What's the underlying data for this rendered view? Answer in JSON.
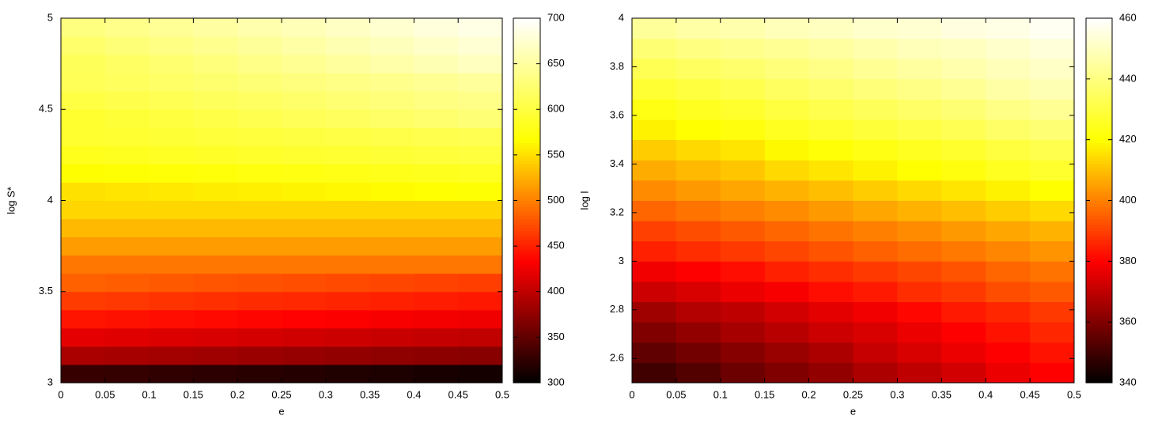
{
  "chart_data": [
    {
      "type": "heatmap",
      "xlabel": "e",
      "ylabel": "log S*",
      "colormap": "hot",
      "x": [
        0.025,
        0.075,
        0.125,
        0.175,
        0.225,
        0.275,
        0.325,
        0.375,
        0.425,
        0.475
      ],
      "y": [
        3.05,
        3.15,
        3.25,
        3.35,
        3.45,
        3.55,
        3.65,
        3.75,
        3.85,
        3.95,
        4.05,
        4.15,
        4.25,
        4.35,
        4.45,
        4.55,
        4.65,
        4.75,
        4.85,
        4.95
      ],
      "z": [
        [
          329,
          327,
          325,
          323,
          321,
          319,
          317,
          315,
          313,
          311
        ],
        [
          389,
          387,
          385,
          383,
          381,
          379,
          377,
          375,
          373,
          371
        ],
        [
          419,
          417,
          415,
          413,
          411,
          409,
          407,
          405,
          403,
          401
        ],
        [
          444,
          442,
          440,
          438,
          436,
          434,
          432,
          430,
          428,
          426
        ],
        [
          464,
          462,
          460,
          458,
          456,
          454,
          452,
          450,
          448,
          446
        ],
        [
          484,
          482,
          480,
          478,
          476,
          474,
          472,
          470,
          468,
          466
        ],
        [
          495,
          495,
          495,
          495,
          495,
          495,
          495,
          495,
          495,
          495
        ],
        [
          515,
          515,
          515,
          515,
          515,
          515,
          515,
          515,
          515,
          515
        ],
        [
          530,
          530,
          530,
          530,
          530,
          530,
          530,
          530,
          530,
          530
        ],
        [
          545,
          545,
          545,
          545,
          545,
          545,
          545,
          545,
          545,
          545
        ],
        [
          551,
          553,
          555,
          557,
          559,
          561,
          563,
          565,
          567,
          569
        ],
        [
          566,
          568,
          570,
          572,
          574,
          576,
          578,
          580,
          582,
          584
        ],
        [
          581,
          583,
          585,
          587,
          589,
          591,
          593,
          595,
          597,
          599
        ],
        [
          591,
          593,
          595,
          597,
          599,
          601,
          603,
          605,
          607,
          609
        ],
        [
          592,
          596,
          600,
          604,
          608,
          612,
          616,
          620,
          624,
          628
        ],
        [
          602,
          606,
          610,
          614,
          618,
          622,
          626,
          630,
          634,
          638
        ],
        [
          612,
          616,
          620,
          624,
          628,
          632,
          636,
          640,
          644,
          648
        ],
        [
          613,
          619,
          625,
          631,
          637,
          643,
          649,
          655,
          661,
          667
        ],
        [
          623,
          629,
          635,
          641,
          647,
          653,
          659,
          665,
          671,
          677
        ],
        [
          633,
          639,
          645,
          651,
          657,
          663,
          669,
          675,
          681,
          687
        ]
      ],
      "xlim": [
        0,
        0.5
      ],
      "xticks": [
        0,
        0.05,
        0.1,
        0.15,
        0.2,
        0.25,
        0.3,
        0.35,
        0.4,
        0.45,
        0.5
      ],
      "ylim": [
        3,
        5
      ],
      "yticks": [
        3,
        3.5,
        4,
        4.5,
        5
      ],
      "zlim": [
        300,
        700
      ],
      "zticks": [
        300,
        350,
        400,
        450,
        500,
        550,
        600,
        650,
        700
      ]
    },
    {
      "type": "heatmap",
      "xlabel": "e",
      "ylabel": "log l",
      "colormap": "hot",
      "x": [
        0.025,
        0.075,
        0.125,
        0.175,
        0.225,
        0.275,
        0.325,
        0.375,
        0.425,
        0.475
      ],
      "y": [
        2.542,
        2.625,
        2.708,
        2.792,
        2.875,
        2.958,
        3.042,
        3.125,
        3.208,
        3.292,
        3.375,
        3.458,
        3.542,
        3.625,
        3.708,
        3.792,
        3.875,
        3.958
      ],
      "z": [
        [
          350,
          353,
          357,
          360,
          363,
          367,
          370,
          373,
          377,
          380
        ],
        [
          355,
          358,
          361,
          364,
          367,
          371,
          374,
          377,
          380,
          383
        ],
        [
          360,
          363,
          366,
          369,
          372,
          374,
          377,
          380,
          383,
          386
        ],
        [
          365,
          368,
          370,
          373,
          376,
          378,
          381,
          384,
          386,
          389
        ],
        [
          372,
          374,
          377,
          379,
          382,
          384,
          387,
          389,
          392,
          394
        ],
        [
          378,
          380,
          382,
          385,
          387,
          389,
          391,
          393,
          396,
          398
        ],
        [
          385,
          387,
          389,
          391,
          393,
          395,
          397,
          399,
          401,
          403
        ],
        [
          390,
          392,
          394,
          396,
          398,
          400,
          402,
          404,
          406,
          408
        ],
        [
          396,
          398,
          400,
          402,
          404,
          406,
          408,
          410,
          412,
          414
        ],
        [
          402,
          404,
          406,
          408,
          410,
          412,
          414,
          416,
          418,
          420
        ],
        [
          407,
          409,
          411,
          414,
          416,
          418,
          420,
          422,
          425,
          427
        ],
        [
          412,
          414,
          416,
          419,
          421,
          423,
          425,
          427,
          430,
          432
        ],
        [
          418,
          420,
          422,
          425,
          427,
          429,
          431,
          433,
          436,
          438
        ],
        [
          423,
          425,
          427,
          430,
          432,
          434,
          436,
          438,
          441,
          443
        ],
        [
          428,
          430,
          432,
          435,
          437,
          439,
          441,
          443,
          446,
          448
        ],
        [
          433,
          435,
          437,
          439,
          441,
          443,
          445,
          447,
          449,
          451
        ],
        [
          438,
          440,
          442,
          443,
          445,
          447,
          449,
          450,
          452,
          454
        ],
        [
          444,
          446,
          447,
          449,
          450,
          452,
          453,
          455,
          456,
          458
        ]
      ],
      "xlim": [
        0,
        0.5
      ],
      "xticks": [
        0,
        0.05,
        0.1,
        0.15,
        0.2,
        0.25,
        0.3,
        0.35,
        0.4,
        0.45,
        0.5
      ],
      "ylim": [
        2.5,
        4
      ],
      "yticks": [
        2.6,
        2.8,
        3,
        3.2,
        3.4,
        3.6,
        3.8,
        4
      ],
      "zlim": [
        340,
        460
      ],
      "zticks": [
        340,
        360,
        380,
        400,
        420,
        440,
        460
      ]
    }
  ]
}
